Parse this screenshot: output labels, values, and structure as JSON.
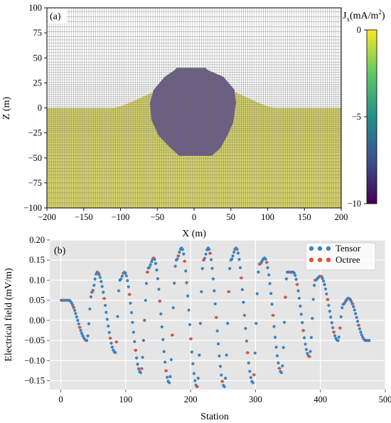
{
  "chart_data": [
    {
      "panel": "(a)",
      "type": "heatmap",
      "xlabel": "X (m)",
      "ylabel": "Z (m)",
      "xlim": [
        -200,
        200
      ],
      "ylim": [
        -100,
        100
      ],
      "xticks": [
        -200,
        -150,
        -100,
        -50,
        0,
        50,
        100,
        150,
        200
      ],
      "yticks": [
        -100,
        -75,
        -50,
        -25,
        0,
        25,
        50,
        75,
        100
      ],
      "colorbar": {
        "label_main": "J",
        "label_sub": "x",
        "label_unit": "(mA/m",
        "label_sup": "2",
        "label_close": ")",
        "range": [
          -10,
          0
        ],
        "ticks": [
          0,
          -5,
          -10
        ],
        "colormap": "viridis"
      },
      "regions": [
        {
          "name": "air",
          "fill_value": null,
          "z_range": [
            0,
            100
          ]
        },
        {
          "name": "earth",
          "fill_value": 0,
          "z_range": [
            -100,
            0
          ]
        },
        {
          "name": "body",
          "fill_value": -9,
          "x_range": [
            -60,
            55
          ],
          "z_range": [
            -48,
            40
          ]
        }
      ],
      "colors": {
        "air": "#ffffff",
        "earth": "#d4d36a",
        "body": "#6c5d85",
        "grid": "#6d6d6d"
      }
    },
    {
      "panel": "(b)",
      "type": "scatter",
      "xlabel": "Station",
      "ylabel": "Electrical field (mV/m)",
      "xlim": [
        -17,
        500
      ],
      "ylim": [
        -0.172,
        0.2
      ],
      "xticks": [
        0,
        100,
        200,
        300,
        400,
        500
      ],
      "yticks": [
        0.2,
        0.15,
        0.1,
        0.05,
        0.0,
        -0.05,
        -0.1,
        -0.15
      ],
      "ytick_labels": [
        "0.20",
        "0.15",
        "0.10",
        "0.05",
        "0.00",
        "−0.05",
        "−0.10",
        "−0.15"
      ],
      "legend_position": "top-right",
      "background": "#e5e5e5",
      "series": [
        {
          "name": "Tensor",
          "color": "#3b83c0"
        },
        {
          "name": "Octree",
          "color": "#e8503a"
        }
      ],
      "segments": [
        {
          "x": [
            1,
            12
          ],
          "y": [
            0.05,
            0.05
          ]
        },
        {
          "x": [
            12,
            40
          ],
          "y": [
            0.05,
            -0.05
          ]
        },
        {
          "x": [
            40,
            48
          ],
          "y": [
            -0.05,
            0.07
          ]
        },
        {
          "x": [
            48,
            56
          ],
          "y": [
            0.07,
            0.12
          ]
        },
        {
          "x": [
            56,
            84
          ],
          "y": [
            0.12,
            -0.08
          ]
        },
        {
          "x": [
            84,
            91
          ],
          "y": [
            -0.08,
            0.1
          ]
        },
        {
          "x": [
            91,
            98
          ],
          "y": [
            0.1,
            0.12
          ]
        },
        {
          "x": [
            98,
            123
          ],
          "y": [
            0.12,
            -0.13
          ]
        },
        {
          "x": [
            123,
            135
          ],
          "y": [
            -0.13,
            0.13
          ]
        },
        {
          "x": [
            135,
            143
          ],
          "y": [
            0.13,
            0.155
          ]
        },
        {
          "x": [
            143,
            167
          ],
          "y": [
            0.155,
            -0.155
          ]
        },
        {
          "x": [
            167,
            178
          ],
          "y": [
            -0.155,
            0.15
          ]
        },
        {
          "x": [
            178,
            186
          ],
          "y": [
            0.15,
            0.18
          ]
        },
        {
          "x": [
            186,
            210
          ],
          "y": [
            0.18,
            -0.165
          ]
        },
        {
          "x": [
            210,
            220
          ],
          "y": [
            -0.165,
            0.15
          ]
        },
        {
          "x": [
            220,
            227
          ],
          "y": [
            0.15,
            0.18
          ]
        },
        {
          "x": [
            227,
            252
          ],
          "y": [
            0.18,
            -0.165
          ]
        },
        {
          "x": [
            252,
            262
          ],
          "y": [
            -0.165,
            0.15
          ]
        },
        {
          "x": [
            262,
            270
          ],
          "y": [
            0.15,
            0.18
          ]
        },
        {
          "x": [
            270,
            296
          ],
          "y": [
            0.18,
            -0.155
          ]
        },
        {
          "x": [
            296,
            306
          ],
          "y": [
            -0.155,
            0.14
          ]
        },
        {
          "x": [
            306,
            314
          ],
          "y": [
            0.14,
            0.155
          ]
        },
        {
          "x": [
            314,
            340
          ],
          "y": [
            0.155,
            -0.13
          ]
        },
        {
          "x": [
            340,
            349
          ],
          "y": [
            -0.13,
            0.12
          ]
        },
        {
          "x": [
            349,
            358
          ],
          "y": [
            0.12,
            0.12
          ]
        },
        {
          "x": [
            358,
            383
          ],
          "y": [
            0.12,
            -0.09
          ]
        },
        {
          "x": [
            383,
            392
          ],
          "y": [
            -0.09,
            0.1
          ]
        },
        {
          "x": [
            392,
            400
          ],
          "y": [
            0.1,
            0.11
          ]
        },
        {
          "x": [
            400,
            427
          ],
          "y": [
            0.11,
            -0.05
          ]
        },
        {
          "x": [
            427,
            435
          ],
          "y": [
            -0.05,
            0.04
          ]
        },
        {
          "x": [
            435,
            443
          ],
          "y": [
            0.04,
            0.055
          ]
        },
        {
          "x": [
            443,
            470
          ],
          "y": [
            0.055,
            -0.05
          ]
        },
        {
          "x": [
            470,
            477
          ],
          "y": [
            -0.05,
            -0.05
          ]
        }
      ]
    }
  ]
}
